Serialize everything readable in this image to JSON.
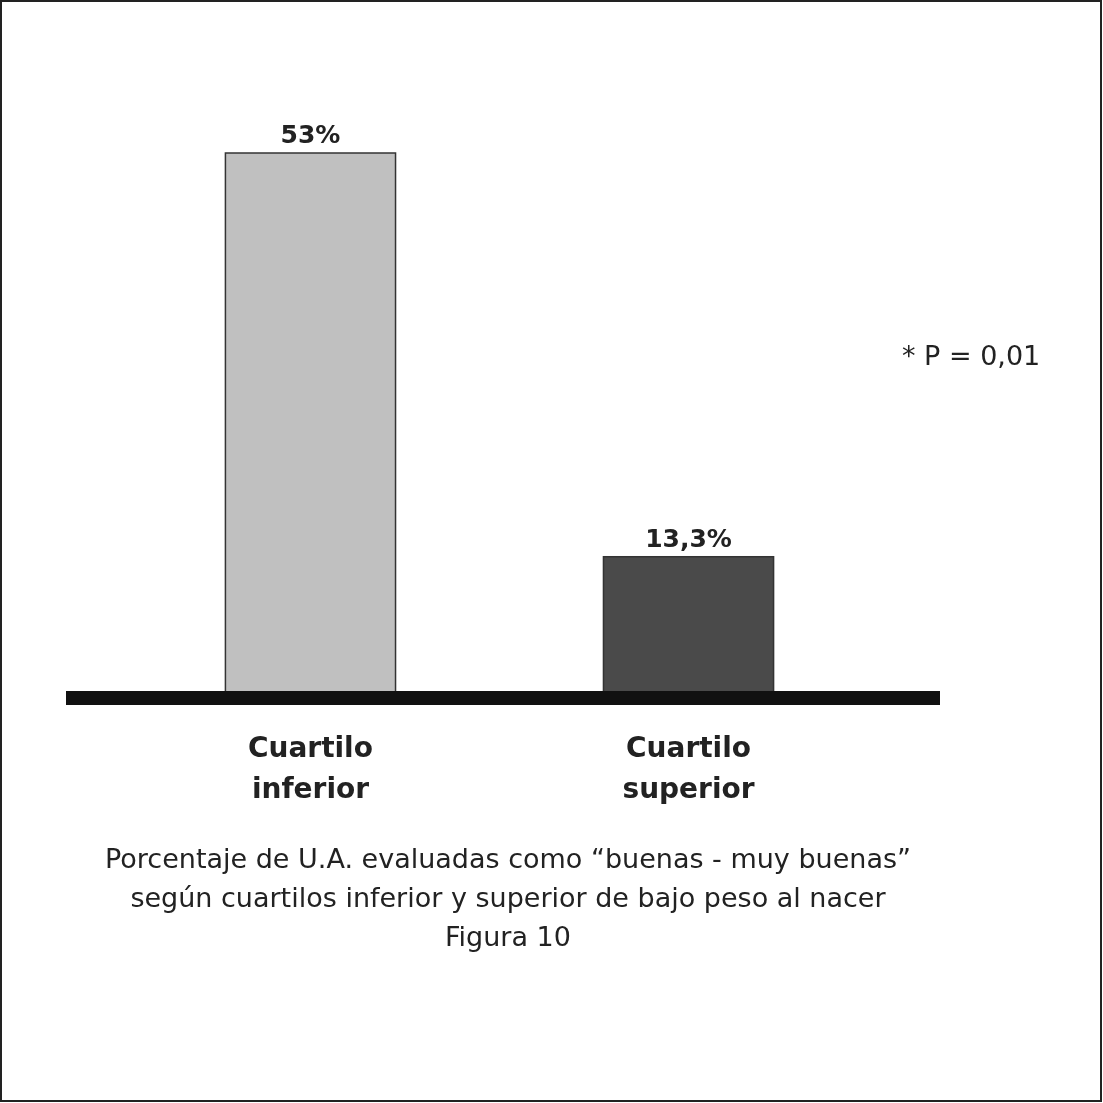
{
  "chart_data": {
    "type": "bar",
    "title": "Porcentaje de U.A. evaluadas como “buenas - muy buenas” según cuartilos inferior y superior de bajo peso al nacer",
    "categories": [
      "Cuartilo inferior",
      "Cuartilo superior"
    ],
    "values": [
      53,
      13.3
    ],
    "colors": [
      "#c0c0c0",
      "#4a4a4a"
    ],
    "value_labels": [
      "53%",
      "13,3%"
    ],
    "annotations": [
      "Figura 10",
      "* P = 0,01"
    ]
  }
}
